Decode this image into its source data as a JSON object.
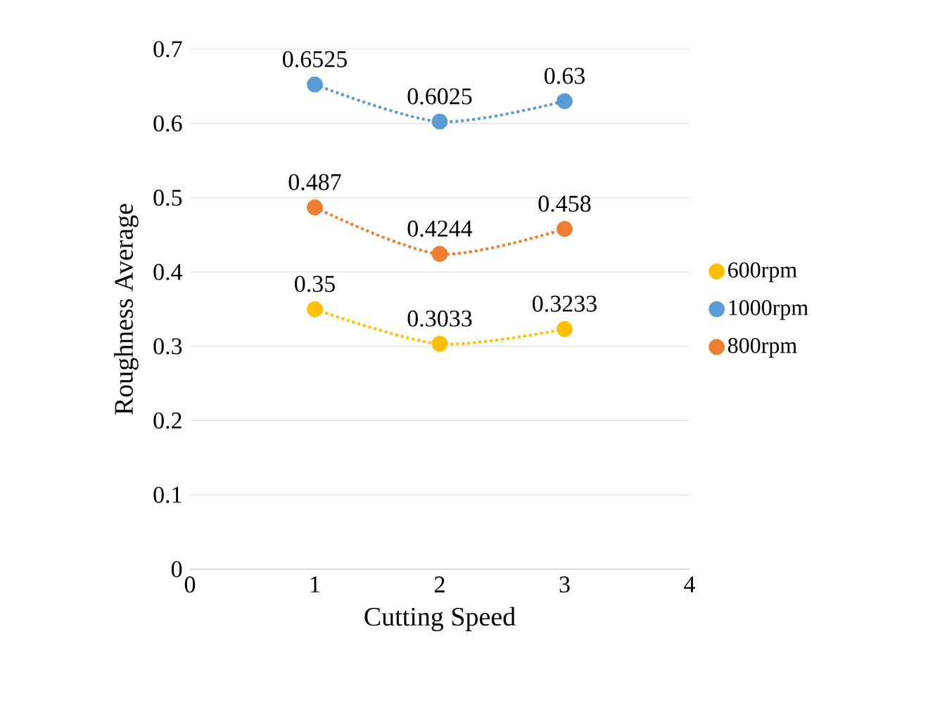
{
  "chart_data": {
    "type": "scatter",
    "xlabel": "Cutting Speed",
    "ylabel": "Roughness Average",
    "xlim": [
      0,
      4
    ],
    "xticks": [
      0,
      1,
      2,
      3,
      4
    ],
    "ylim": [
      0,
      0.7
    ],
    "yticks": [
      0,
      0.1,
      0.2,
      0.3,
      0.4,
      0.5,
      0.6,
      0.7
    ],
    "grid": "y",
    "legend": "right",
    "data_labels": true,
    "series": [
      {
        "name": "600rpm",
        "color": "#ffc000",
        "marker": "circle",
        "x": [
          1,
          2,
          3
        ],
        "values": [
          0.35,
          0.3033,
          0.3233
        ]
      },
      {
        "name": "1000rpm",
        "color": "#5b9bd5",
        "marker": "circle",
        "x": [
          1,
          2,
          3
        ],
        "values": [
          0.6525,
          0.6025,
          0.63
        ]
      },
      {
        "name": "800rpm",
        "color": "#ed7d31",
        "marker": "circle",
        "x": [
          1,
          2,
          3
        ],
        "values": [
          0.487,
          0.4244,
          0.458
        ]
      },
      {
        "type": "line",
        "color": "#ffc000",
        "x": [
          1,
          2,
          3
        ],
        "values": [
          0.35,
          0.3033,
          0.3233
        ],
        "line_style": "dotted",
        "marker": "none",
        "value_labels": [
          null,
          null,
          null
        ]
      },
      {
        "type": "line",
        "color": "#5b9bd5",
        "x": [
          1,
          2,
          3
        ],
        "values": [
          0.6525,
          0.6025,
          0.63
        ],
        "line_style": "dotted",
        "marker": "none",
        "value_labels": [
          null,
          null,
          null
        ]
      },
      {
        "type": "line",
        "color": "#ed7d31",
        "x": [
          1,
          2,
          3
        ],
        "values": [
          0.487,
          0.4244,
          0.458
        ],
        "line_style": "dotted",
        "marker": "none",
        "value_labels": [
          null,
          null,
          null
        ]
      }
    ]
  }
}
